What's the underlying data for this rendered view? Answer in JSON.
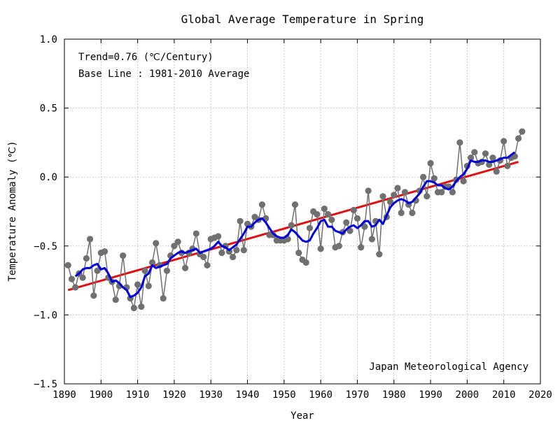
{
  "chart_data": {
    "type": "line",
    "title": "Global Average Temperature in Spring",
    "xlabel": "Year",
    "ylabel": "Temperature Anomaly (℃)",
    "xlim": [
      1890,
      2020
    ],
    "ylim": [
      -1.5,
      1.0
    ],
    "xticks": [
      1890,
      1900,
      1910,
      1920,
      1930,
      1940,
      1950,
      1960,
      1970,
      1980,
      1990,
      2000,
      2010,
      2020
    ],
    "yticks": [
      1.0,
      0.5,
      0.0,
      -0.5,
      -1.0,
      -1.5
    ],
    "ytick_labels": [
      "1.0",
      "0.5",
      "0.0",
      "−0.5",
      "−1.0",
      "−1.5"
    ],
    "grid": true,
    "annotations": {
      "trend": "Trend=0.76 (℃/Century)",
      "baseline": "Base Line : 1981-2010 Average",
      "source": "Japan Meteorological Agency"
    },
    "colors": {
      "annual": "#707070",
      "moving_average": "#0000dd",
      "trend": "#e01010",
      "grid": "#c8c8c8"
    },
    "series": [
      {
        "type": "line-markers",
        "x": [
          1891,
          1892,
          1893,
          1894,
          1895,
          1896,
          1897,
          1898,
          1899,
          1900,
          1901,
          1902,
          1903,
          1904,
          1905,
          1906,
          1907,
          1908,
          1909,
          1910,
          1911,
          1912,
          1913,
          1914,
          1915,
          1916,
          1917,
          1918,
          1919,
          1920,
          1921,
          1922,
          1923,
          1924,
          1925,
          1926,
          1927,
          1928,
          1929,
          1930,
          1931,
          1932,
          1933,
          1934,
          1935,
          1936,
          1937,
          1938,
          1939,
          1940,
          1941,
          1942,
          1943,
          1944,
          1945,
          1946,
          1947,
          1948,
          1949,
          1950,
          1951,
          1952,
          1953,
          1954,
          1955,
          1956,
          1957,
          1958,
          1959,
          1960,
          1961,
          1962,
          1963,
          1964,
          1965,
          1966,
          1967,
          1968,
          1969,
          1970,
          1971,
          1972,
          1973,
          1974,
          1975,
          1976,
          1977,
          1978,
          1979,
          1980,
          1981,
          1982,
          1983,
          1984,
          1985,
          1986,
          1987,
          1988,
          1989,
          1990,
          1991,
          1992,
          1993,
          1994,
          1995,
          1996,
          1997,
          1998,
          1999,
          2000,
          2001,
          2002,
          2003,
          2004,
          2005,
          2006,
          2007,
          2008,
          2009,
          2010,
          2011,
          2012,
          2013,
          2014,
          2015
        ],
        "values": [
          -0.64,
          -0.74,
          -0.8,
          -0.7,
          -0.73,
          -0.59,
          -0.45,
          -0.86,
          -0.68,
          -0.55,
          -0.54,
          -0.73,
          -0.76,
          -0.89,
          -0.79,
          -0.57,
          -0.8,
          -0.88,
          -0.95,
          -0.78,
          -0.94,
          -0.68,
          -0.79,
          -0.62,
          -0.48,
          -0.64,
          -0.88,
          -0.68,
          -0.57,
          -0.5,
          -0.47,
          -0.55,
          -0.66,
          -0.55,
          -0.52,
          -0.41,
          -0.56,
          -0.58,
          -0.64,
          -0.45,
          -0.44,
          -0.43,
          -0.55,
          -0.5,
          -0.54,
          -0.58,
          -0.53,
          -0.32,
          -0.53,
          -0.34,
          -0.36,
          -0.29,
          -0.31,
          -0.2,
          -0.3,
          -0.42,
          -0.42,
          -0.46,
          -0.46,
          -0.46,
          -0.45,
          -0.35,
          -0.2,
          -0.55,
          -0.6,
          -0.62,
          -0.37,
          -0.25,
          -0.27,
          -0.52,
          -0.23,
          -0.27,
          -0.31,
          -0.51,
          -0.5,
          -0.4,
          -0.33,
          -0.39,
          -0.24,
          -0.3,
          -0.51,
          -0.36,
          -0.1,
          -0.45,
          -0.32,
          -0.56,
          -0.14,
          -0.29,
          -0.18,
          -0.13,
          -0.08,
          -0.26,
          -0.11,
          -0.2,
          -0.26,
          -0.17,
          -0.1,
          0.0,
          -0.14,
          0.1,
          -0.01,
          -0.11,
          -0.11,
          -0.07,
          -0.07,
          -0.11,
          -0.02,
          0.25,
          -0.03,
          0.08,
          0.14,
          0.18,
          0.1,
          0.11,
          0.17,
          0.09,
          0.14,
          0.04,
          0.12,
          0.26,
          0.08,
          0.14,
          0.15,
          0.28,
          0.33
        ]
      },
      {
        "type": "line",
        "x": [
          1893,
          1894,
          1895,
          1896,
          1897,
          1898,
          1899,
          1900,
          1901,
          1902,
          1903,
          1904,
          1905,
          1906,
          1907,
          1908,
          1909,
          1910,
          1911,
          1912,
          1913,
          1914,
          1915,
          1916,
          1917,
          1918,
          1919,
          1920,
          1921,
          1922,
          1923,
          1924,
          1925,
          1926,
          1927,
          1928,
          1929,
          1930,
          1931,
          1932,
          1933,
          1934,
          1935,
          1936,
          1937,
          1938,
          1939,
          1940,
          1941,
          1942,
          1943,
          1944,
          1945,
          1946,
          1947,
          1948,
          1949,
          1950,
          1951,
          1952,
          1953,
          1954,
          1955,
          1956,
          1957,
          1958,
          1959,
          1960,
          1961,
          1962,
          1963,
          1964,
          1965,
          1966,
          1967,
          1968,
          1969,
          1970,
          1971,
          1972,
          1973,
          1974,
          1975,
          1976,
          1977,
          1978,
          1979,
          1980,
          1981,
          1982,
          1983,
          1984,
          1985,
          1986,
          1987,
          1988,
          1989,
          1990,
          1991,
          1992,
          1993,
          1994,
          1995,
          1996,
          1997,
          1998,
          1999,
          2000,
          2001,
          2002,
          2003,
          2004,
          2005,
          2006,
          2007,
          2008,
          2009,
          2010,
          2011,
          2012,
          2013
        ],
        "values": [
          -0.72,
          -0.7,
          -0.67,
          -0.66,
          -0.66,
          -0.64,
          -0.63,
          -0.67,
          -0.66,
          -0.7,
          -0.76,
          -0.75,
          -0.77,
          -0.8,
          -0.82,
          -0.87,
          -0.86,
          -0.84,
          -0.8,
          -0.72,
          -0.7,
          -0.64,
          -0.66,
          -0.65,
          -0.64,
          -0.63,
          -0.59,
          -0.57,
          -0.55,
          -0.54,
          -0.55,
          -0.54,
          -0.53,
          -0.52,
          -0.55,
          -0.54,
          -0.53,
          -0.52,
          -0.5,
          -0.47,
          -0.5,
          -0.51,
          -0.53,
          -0.51,
          -0.49,
          -0.45,
          -0.41,
          -0.36,
          -0.36,
          -0.33,
          -0.31,
          -0.3,
          -0.33,
          -0.37,
          -0.41,
          -0.43,
          -0.44,
          -0.44,
          -0.42,
          -0.38,
          -0.4,
          -0.43,
          -0.46,
          -0.47,
          -0.46,
          -0.41,
          -0.37,
          -0.32,
          -0.31,
          -0.36,
          -0.36,
          -0.39,
          -0.4,
          -0.41,
          -0.38,
          -0.36,
          -0.35,
          -0.37,
          -0.35,
          -0.32,
          -0.32,
          -0.36,
          -0.35,
          -0.31,
          -0.34,
          -0.28,
          -0.22,
          -0.19,
          -0.17,
          -0.16,
          -0.17,
          -0.19,
          -0.18,
          -0.15,
          -0.12,
          -0.07,
          -0.03,
          -0.03,
          -0.04,
          -0.06,
          -0.06,
          -0.08,
          -0.09,
          -0.07,
          -0.03,
          0.0,
          0.02,
          0.06,
          0.12,
          0.11,
          0.11,
          0.12,
          0.12,
          0.11,
          0.11,
          0.12,
          0.13,
          0.14,
          0.14,
          0.16,
          0.18
        ]
      },
      {
        "type": "trend",
        "x": [
          1891,
          2014
        ],
        "values": [
          -0.82,
          0.11
        ]
      }
    ]
  }
}
